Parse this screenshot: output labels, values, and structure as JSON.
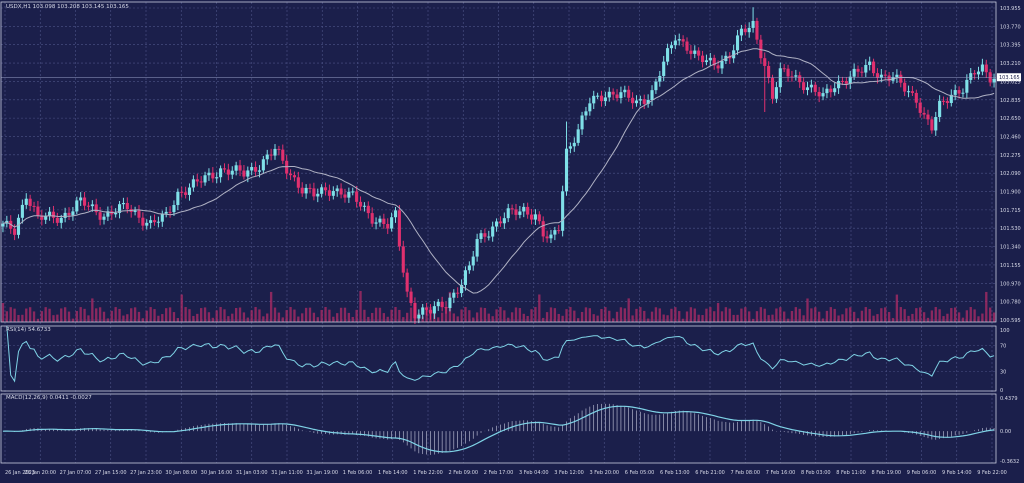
{
  "colors": {
    "background": "#1b1f4b",
    "grid": "#4e5488",
    "frame": "#c9cbe0",
    "text": "#d8dae8",
    "bull": "#7fe0e8",
    "bear": "#e0306e",
    "ma_line": "#b0b2c4",
    "indicator_line": "#7fd3e6",
    "volume": "#b02c66",
    "price_tag_bg": "#ffffff",
    "price_tag_text": "#1b1f4b"
  },
  "price_panel": {
    "title": "USDX,H1  103.098 103.208 103.145 103.165",
    "current_price_label": "103.165",
    "axis_labels": [
      "103.955",
      "103.770",
      "103.395",
      "103.210",
      "103.025",
      "102.835",
      "102.650",
      "102.460",
      "102.275",
      "102.090",
      "101.900",
      "101.715",
      "101.530",
      "101.340",
      "101.155",
      "100.970",
      "100.780",
      "100.595"
    ]
  },
  "rsi_panel": {
    "title": "RSI(14) 54.6733",
    "axis_labels": [
      "100",
      "70",
      "30",
      "0"
    ]
  },
  "macd_panel": {
    "title": "MACD(12,26,9) 0.0411 -0.0027",
    "axis_labels": [
      "0.4379",
      "0.00",
      "-0.3632"
    ]
  },
  "time_axis": {
    "labels": [
      "26 Jan 2023",
      "26 Jan 20:00",
      "27 Jan 07:00",
      "27 Jan 15:00",
      "27 Jan 23:00",
      "30 Jan 08:00",
      "30 Jan 16:00",
      "31 Jan 03:00",
      "31 Jan 11:00",
      "31 Jan 19:00",
      "1 Feb 06:00",
      "1 Feb 14:00",
      "1 Feb 22:00",
      "2 Feb 09:00",
      "2 Feb 17:00",
      "3 Feb 04:00",
      "3 Feb 12:00",
      "3 Feb 20:00",
      "6 Feb 05:00",
      "6 Feb 13:00",
      "6 Feb 21:00",
      "7 Feb 08:00",
      "7 Feb 16:00",
      "8 Feb 03:00",
      "8 Feb 11:00",
      "8 Feb 19:00",
      "9 Feb 06:00",
      "9 Feb 14:00",
      "9 Feb 22:00"
    ]
  },
  "chart_data": {
    "type": "candlestick",
    "symbol": "USDX",
    "timeframe": "H1",
    "y_range": [
      100.595,
      103.955
    ],
    "close_keypoints": [
      [
        0,
        101.6
      ],
      [
        3,
        101.55
      ],
      [
        6,
        101.95
      ],
      [
        9,
        101.68
      ],
      [
        15,
        101.7
      ],
      [
        20,
        101.85
      ],
      [
        26,
        101.72
      ],
      [
        32,
        101.8
      ],
      [
        38,
        101.62
      ],
      [
        42,
        101.7
      ],
      [
        45,
        101.95
      ],
      [
        50,
        102.05
      ],
      [
        56,
        102.2
      ],
      [
        62,
        102.15
      ],
      [
        66,
        102.25
      ],
      [
        70,
        102.4
      ],
      [
        73,
        102.2
      ],
      [
        77,
        102.0
      ],
      [
        80,
        101.92
      ],
      [
        85,
        102.0
      ],
      [
        90,
        101.9
      ],
      [
        95,
        101.7
      ],
      [
        99,
        101.6
      ],
      [
        101,
        101.7
      ],
      [
        102,
        101.4
      ],
      [
        104,
        100.9
      ],
      [
        106,
        100.7
      ],
      [
        110,
        100.7
      ],
      [
        114,
        100.8
      ],
      [
        118,
        101.0
      ],
      [
        120,
        101.15
      ],
      [
        122,
        101.45
      ],
      [
        126,
        101.6
      ],
      [
        130,
        101.72
      ],
      [
        134,
        101.78
      ],
      [
        137,
        101.72
      ],
      [
        139,
        101.5
      ],
      [
        141,
        101.45
      ],
      [
        143,
        101.6
      ],
      [
        145,
        102.4
      ],
      [
        148,
        102.6
      ],
      [
        151,
        102.9
      ],
      [
        155,
        103.0
      ],
      [
        159,
        102.98
      ],
      [
        163,
        102.9
      ],
      [
        167,
        103.0
      ],
      [
        170,
        103.3
      ],
      [
        173,
        103.6
      ],
      [
        176,
        103.5
      ],
      [
        179,
        103.35
      ],
      [
        183,
        103.3
      ],
      [
        187,
        103.4
      ],
      [
        190,
        103.62
      ],
      [
        193,
        103.72
      ],
      [
        196,
        103.3
      ],
      [
        198,
        102.95
      ],
      [
        200,
        103.2
      ],
      [
        203,
        103.2
      ],
      [
        206,
        103.1
      ],
      [
        209,
        103.0
      ],
      [
        211,
        102.95
      ],
      [
        214,
        103.1
      ],
      [
        217,
        103.15
      ],
      [
        220,
        103.2
      ],
      [
        223,
        103.3
      ],
      [
        226,
        103.18
      ],
      [
        229,
        103.15
      ],
      [
        232,
        103.05
      ],
      [
        235,
        102.95
      ],
      [
        237,
        102.75
      ],
      [
        239,
        102.62
      ],
      [
        241,
        102.85
      ],
      [
        244,
        103.0
      ],
      [
        247,
        103.05
      ],
      [
        250,
        103.2
      ],
      [
        252,
        103.25
      ],
      [
        254,
        103.18
      ]
    ],
    "rsi": {
      "period": 14,
      "last": 54.6733,
      "levels": [
        70,
        30
      ]
    },
    "macd": {
      "fast": 12,
      "slow": 26,
      "signal": 9,
      "main": 0.0411,
      "signal_value": -0.0027
    }
  }
}
